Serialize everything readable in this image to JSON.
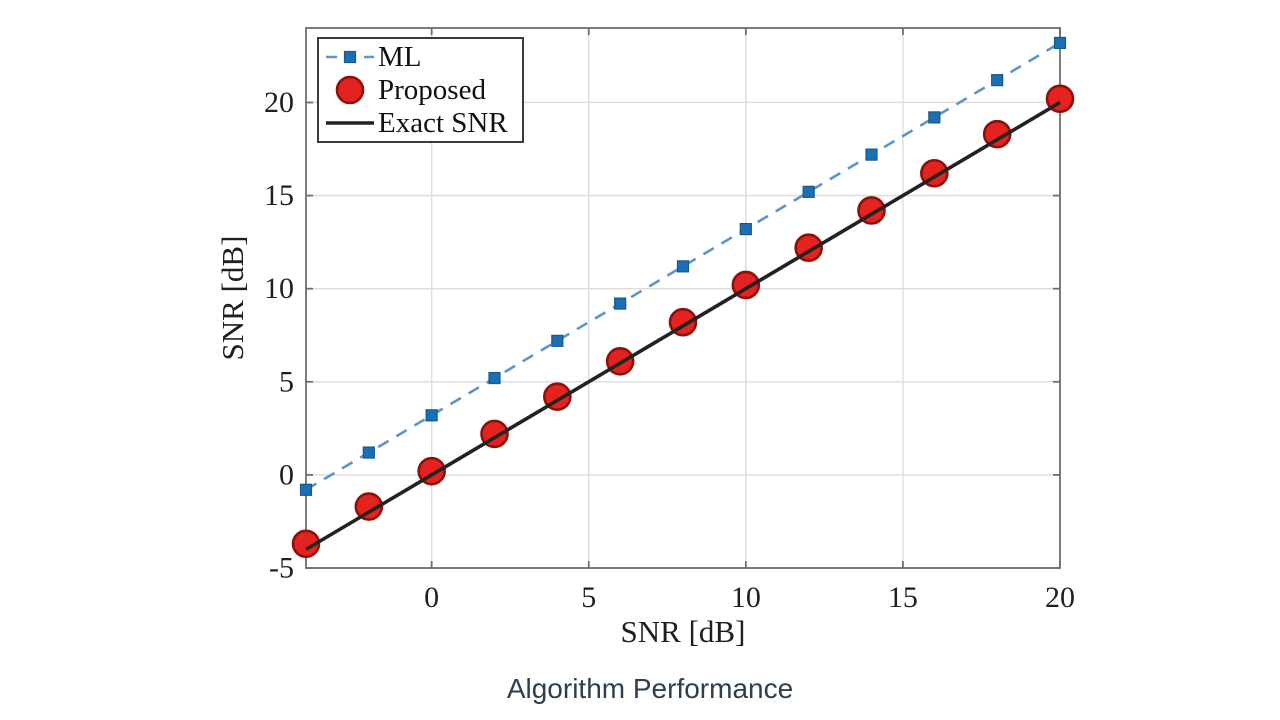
{
  "page": {
    "background": "#ffffff",
    "caption": "Algorithm Performance",
    "caption_color": "#2d3e4f"
  },
  "chart_data": {
    "type": "line",
    "title": "",
    "xlabel": "SNR [dB]",
    "ylabel": "SNR [dB]",
    "xlim": [
      -4,
      20
    ],
    "ylim": [
      -5,
      24
    ],
    "xticks": [
      0,
      5,
      10,
      15,
      20
    ],
    "yticks": [
      -5,
      0,
      5,
      10,
      15,
      20
    ],
    "grid": true,
    "legend_position": "top-left",
    "x": [
      -4,
      -2,
      0,
      2,
      4,
      6,
      8,
      10,
      12,
      14,
      16,
      18,
      20
    ],
    "series": [
      {
        "name": "ML",
        "draw": "line+marker",
        "marker": "square",
        "line_style": "dashed",
        "line_color": "#5d94c9",
        "marker_color": "#1c6fb4",
        "marker_edge": "#155a8a",
        "values": [
          -0.8,
          1.2,
          3.2,
          5.2,
          7.2,
          9.2,
          11.2,
          13.2,
          15.2,
          17.2,
          19.2,
          21.2,
          23.2
        ]
      },
      {
        "name": "Proposed",
        "draw": "marker",
        "marker": "circle",
        "line_style": "none",
        "marker_color": "#e42320",
        "marker_edge": "#8c100b",
        "values": [
          -3.7,
          -1.7,
          0.2,
          2.2,
          4.2,
          6.1,
          8.2,
          10.2,
          12.2,
          14.2,
          16.2,
          18.3,
          20.2
        ]
      },
      {
        "name": "Exact SNR",
        "draw": "line",
        "marker": "none",
        "line_style": "solid",
        "line_color": "#222222",
        "values": [
          -4,
          -2,
          0,
          2,
          4,
          6,
          8,
          10,
          12,
          14,
          16,
          18,
          20
        ]
      }
    ],
    "colors": {
      "grid": "#dcdcdc",
      "axis_box": "#6e6e6e",
      "tick_label": "#1f1f1f",
      "axis_label": "#1f1f1f",
      "legend_border": "#3a3a3a",
      "legend_bg": "#ffffff",
      "legend_text": "#111111"
    }
  }
}
